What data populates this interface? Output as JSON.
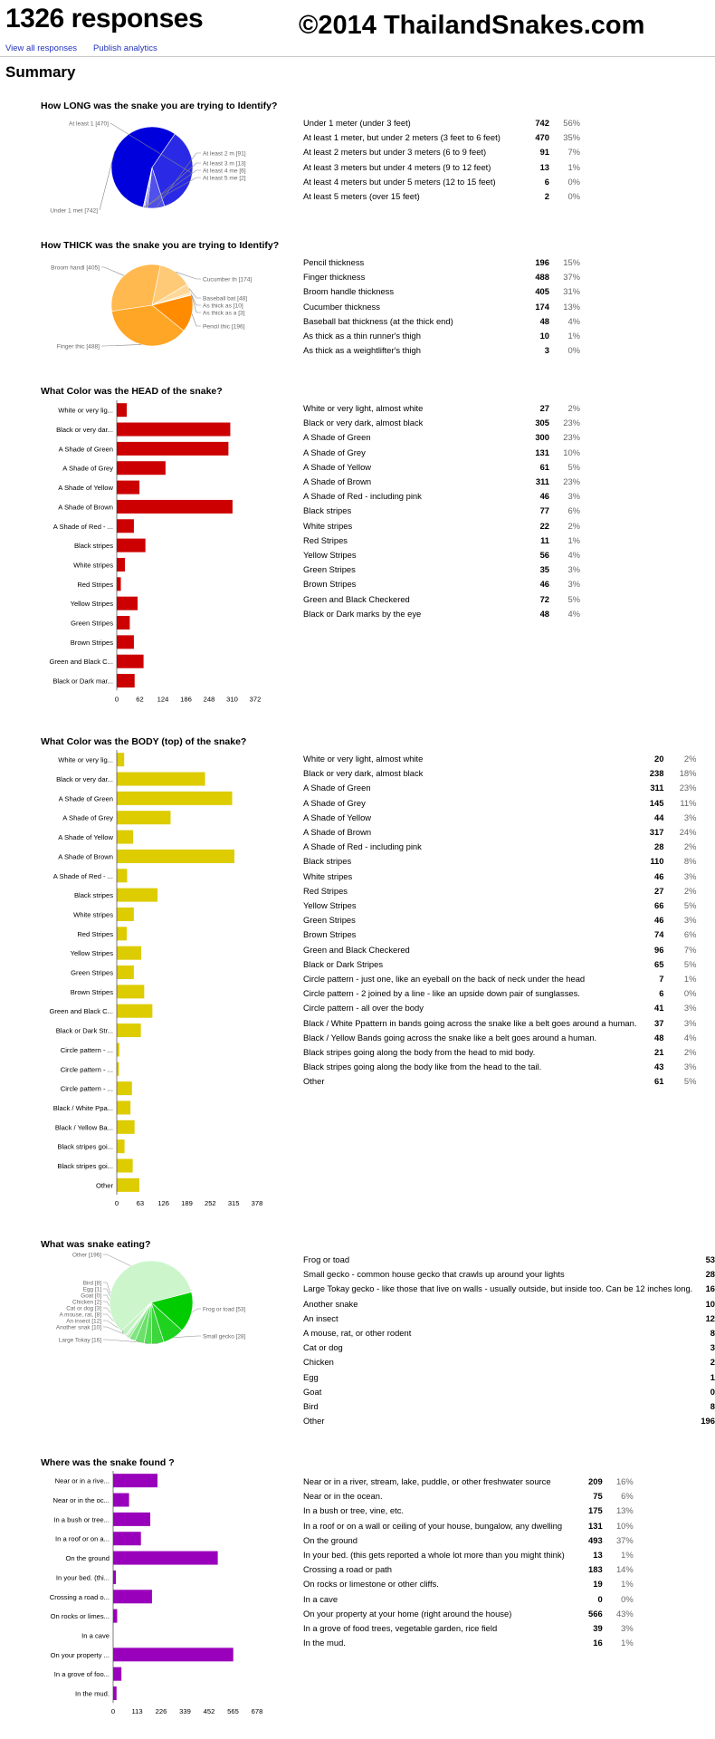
{
  "header": {
    "title": "1326 responses",
    "copyright": "©2014 ThailandSnakes.com",
    "view_all": "View all responses",
    "publish": "Publish analytics"
  },
  "summary_label": "Summary",
  "questions": [
    {
      "title": "How LONG was the snake you are trying to Identify?",
      "rows": [
        {
          "label": "Under 1 meter (under 3 feet)",
          "count": "742",
          "pct": "56%"
        },
        {
          "label": "At least 1 meter, but under 2 meters (3 feet to 6 feet)",
          "count": "470",
          "pct": "35%"
        },
        {
          "label": "At least 2 meters but under 3 meters (6 to 9 feet)",
          "count": "91",
          "pct": "7%"
        },
        {
          "label": "At least 3 meters but under 4 meters (9 to 12 feet)",
          "count": "13",
          "pct": "1%"
        },
        {
          "label": "At least 4 meters but under 5 meters (12 to 15 feet)",
          "count": "6",
          "pct": "0%"
        },
        {
          "label": "At least 5 meters (over 15 feet)",
          "count": "2",
          "pct": "0%"
        }
      ]
    },
    {
      "title": "How THICK was the snake you are trying to Identify?",
      "rows": [
        {
          "label": "Pencil thickness",
          "count": "196",
          "pct": "15%"
        },
        {
          "label": "Finger thickness",
          "count": "488",
          "pct": "37%"
        },
        {
          "label": "Broom handle thickness",
          "count": "405",
          "pct": "31%"
        },
        {
          "label": "Cucumber thickness",
          "count": "174",
          "pct": "13%"
        },
        {
          "label": "Baseball bat thickness (at the thick end)",
          "count": "48",
          "pct": "4%"
        },
        {
          "label": "As thick as a thin runner's thigh",
          "count": "10",
          "pct": "1%"
        },
        {
          "label": "As thick as a weightlifter's thigh",
          "count": "3",
          "pct": "0%"
        }
      ]
    },
    {
      "title": "What Color was the HEAD of the snake?",
      "rows": [
        {
          "label": "White or very light, almost white",
          "count": "27",
          "pct": "2%"
        },
        {
          "label": "Black or very dark, almost black",
          "count": "305",
          "pct": "23%"
        },
        {
          "label": "A Shade of Green",
          "count": "300",
          "pct": "23%"
        },
        {
          "label": "A Shade of Grey",
          "count": "131",
          "pct": "10%"
        },
        {
          "label": "A Shade of Yellow",
          "count": "61",
          "pct": "5%"
        },
        {
          "label": "A Shade of Brown",
          "count": "311",
          "pct": "23%"
        },
        {
          "label": "A Shade of Red - including pink",
          "count": "46",
          "pct": "3%"
        },
        {
          "label": "Black stripes",
          "count": "77",
          "pct": "6%"
        },
        {
          "label": "White stripes",
          "count": "22",
          "pct": "2%"
        },
        {
          "label": "Red Stripes",
          "count": "11",
          "pct": "1%"
        },
        {
          "label": "Yellow Stripes",
          "count": "56",
          "pct": "4%"
        },
        {
          "label": "Green Stripes",
          "count": "35",
          "pct": "3%"
        },
        {
          "label": "Brown Stripes",
          "count": "46",
          "pct": "3%"
        },
        {
          "label": "Green and Black Checkered",
          "count": "72",
          "pct": "5%"
        },
        {
          "label": "Black or Dark marks by the eye",
          "count": "48",
          "pct": "4%"
        }
      ]
    },
    {
      "title": "What Color was the BODY (top) of the snake?",
      "rows": [
        {
          "label": "White or very light, almost white",
          "count": "20",
          "pct": "2%"
        },
        {
          "label": "Black or very dark, almost black",
          "count": "238",
          "pct": "18%"
        },
        {
          "label": "A Shade of Green",
          "count": "311",
          "pct": "23%"
        },
        {
          "label": "A Shade of Grey",
          "count": "145",
          "pct": "11%"
        },
        {
          "label": "A Shade of Yellow",
          "count": "44",
          "pct": "3%"
        },
        {
          "label": "A Shade of Brown",
          "count": "317",
          "pct": "24%"
        },
        {
          "label": "A Shade of Red - including pink",
          "count": "28",
          "pct": "2%"
        },
        {
          "label": "Black stripes",
          "count": "110",
          "pct": "8%"
        },
        {
          "label": "White stripes",
          "count": "46",
          "pct": "3%"
        },
        {
          "label": "Red Stripes",
          "count": "27",
          "pct": "2%"
        },
        {
          "label": "Yellow Stripes",
          "count": "66",
          "pct": "5%"
        },
        {
          "label": "Green Stripes",
          "count": "46",
          "pct": "3%"
        },
        {
          "label": "Brown Stripes",
          "count": "74",
          "pct": "6%"
        },
        {
          "label": "Green and Black Checkered",
          "count": "96",
          "pct": "7%"
        },
        {
          "label": "Black or Dark Stripes",
          "count": "65",
          "pct": "5%"
        },
        {
          "label": "Circle pattern - just one, like an eyeball on the back of neck under the head",
          "count": "7",
          "pct": "1%"
        },
        {
          "label": "Circle pattern - 2 joined by a line - like an upside down pair of sunglasses.",
          "count": "6",
          "pct": "0%"
        },
        {
          "label": "Circle pattern - all over the body",
          "count": "41",
          "pct": "3%"
        },
        {
          "label": "Black / White Ppattern in bands going across the snake like a belt goes around a human.",
          "count": "37",
          "pct": "3%"
        },
        {
          "label": "Black / Yellow Bands going across the snake like a belt goes around a human.",
          "count": "48",
          "pct": "4%"
        },
        {
          "label": "Black stripes going along the body from the head to mid body.",
          "count": "21",
          "pct": "2%"
        },
        {
          "label": "Black stripes going along the body like from the head to the tail.",
          "count": "43",
          "pct": "3%"
        },
        {
          "label": "Other",
          "count": "61",
          "pct": "5%"
        }
      ]
    },
    {
      "title": "What was snake eating?",
      "rows": [
        {
          "label": "Frog or toad",
          "count": "53"
        },
        {
          "label": "Small gecko - common house gecko that crawls up around your lights",
          "count": "28"
        },
        {
          "label": "Large Tokay gecko - like those that live on walls - usually outside, but inside too. Can be 12 inches long.",
          "count": "16"
        },
        {
          "label": "Another snake",
          "count": "10"
        },
        {
          "label": "An insect",
          "count": "12"
        },
        {
          "label": "A mouse, rat, or other rodent",
          "count": "8"
        },
        {
          "label": "Cat or dog",
          "count": "3"
        },
        {
          "label": "Chicken",
          "count": "2"
        },
        {
          "label": "Egg",
          "count": "1"
        },
        {
          "label": "Goat",
          "count": "0"
        },
        {
          "label": "Bird",
          "count": "8"
        },
        {
          "label": "Other",
          "count": "196"
        }
      ]
    },
    {
      "title": "Where was the snake found ?",
      "rows": [
        {
          "label": "Near or in a river, stream, lake, puddle, or other freshwater source",
          "count": "209",
          "pct": "16%"
        },
        {
          "label": "Near or in the ocean.",
          "count": "75",
          "pct": "6%"
        },
        {
          "label": "In a bush or tree, vine, etc.",
          "count": "175",
          "pct": "13%"
        },
        {
          "label": "In a roof or on a wall or ceiling of your house, bungalow, any dwelling",
          "count": "131",
          "pct": "10%"
        },
        {
          "label": "On the ground",
          "count": "493",
          "pct": "37%"
        },
        {
          "label": "In your bed. (this gets reported a whole lot more than you might think)",
          "count": "13",
          "pct": "1%"
        },
        {
          "label": "Crossing a road or path",
          "count": "183",
          "pct": "14%"
        },
        {
          "label": "On rocks or limestone or other cliffs.",
          "count": "19",
          "pct": "1%"
        },
        {
          "label": "In a cave",
          "count": "0",
          "pct": "0%"
        },
        {
          "label": "On your property at your home (right around the house)",
          "count": "566",
          "pct": "43%"
        },
        {
          "label": "In a grove of food trees, vegetable garden, rice field",
          "count": "39",
          "pct": "3%"
        },
        {
          "label": "In the mud.",
          "count": "16",
          "pct": "1%"
        }
      ]
    }
  ],
  "chart_data": [
    {
      "type": "pie",
      "title": "How LONG was the snake you are trying to Identify?",
      "categories": [
        "Under 1 met",
        "At least 1",
        "At least 2 m",
        "At least 3 m",
        "At least 4 me",
        "At least 5 me"
      ],
      "data_labels": [
        "Under 1 met [742]",
        "At least 1  [470]",
        "At least 2 m [91]",
        "At least 3 m [13]",
        "At least 4 me [6]",
        "At least 5 me [2]"
      ],
      "values": [
        742,
        470,
        91,
        13,
        6,
        2
      ],
      "colors": [
        "#0000dd",
        "#2a2ae6",
        "#5050ea",
        "#7a7aee",
        "#9d9df2",
        "#c2c2f7"
      ]
    },
    {
      "type": "pie",
      "title": "How THICK was the snake you are trying to Identify?",
      "categories": [
        "Pencil thic",
        "Finger thic",
        "Broom handl",
        "Cucumber th",
        "Baseball bat",
        "As thick as",
        "As thick as"
      ],
      "data_labels": [
        "Pencil thic [196]",
        "Finger thic [488]",
        "Broom handl [405]",
        "Cucumber th [174]",
        "Baseball bat [48]",
        "As thick as  [10]",
        "As thick as a [3]"
      ],
      "values": [
        196,
        488,
        405,
        174,
        48,
        10,
        3
      ],
      "colors": [
        "#ff8c00",
        "#ffa626",
        "#ffb94f",
        "#ffca78",
        "#ffd898",
        "#ffe3b4",
        "#ffeccb"
      ]
    },
    {
      "type": "bar",
      "orientation": "horizontal",
      "title": "What Color was the HEAD of the snake?",
      "categories": [
        "White or very lig...",
        "Black or very dar...",
        "A Shade of Green",
        "A Shade of Grey",
        "A Shade of Yellow",
        "A Shade of Brown",
        "A Shade of Red - ...",
        "Black stripes",
        "White stripes",
        "Red Stripes",
        "Yellow Stripes",
        "Green Stripes",
        "Brown Stripes",
        "Green and Black C...",
        "Black or Dark mar..."
      ],
      "values": [
        27,
        305,
        300,
        131,
        61,
        311,
        46,
        77,
        22,
        11,
        56,
        35,
        46,
        72,
        48
      ],
      "xticks": [
        "0",
        "62",
        "124",
        "186",
        "248",
        "310",
        "372"
      ],
      "xlim": [
        0,
        372
      ],
      "color": "#cc0000"
    },
    {
      "type": "bar",
      "orientation": "horizontal",
      "title": "What Color was the BODY (top) of the snake?",
      "categories": [
        "White or very lig...",
        "Black or very dar...",
        "A Shade of Green",
        "A Shade of Grey",
        "A Shade of Yellow",
        "A Shade of Brown",
        "A Shade of Red - ...",
        "Black stripes",
        "White stripes",
        "Red Stripes",
        "Yellow Stripes",
        "Green Stripes",
        "Brown Stripes",
        "Green and Black C...",
        "Black or Dark Str...",
        "Circle pattern - ...",
        "Circle pattern - ...",
        "Circle pattern - ...",
        "Black / White Ppa...",
        "Black / Yellow Ba...",
        "Black stripes goi...",
        "Black stripes goi...",
        "Other"
      ],
      "values": [
        20,
        238,
        311,
        145,
        44,
        317,
        28,
        110,
        46,
        27,
        66,
        46,
        74,
        96,
        65,
        7,
        6,
        41,
        37,
        48,
        21,
        43,
        61
      ],
      "xticks": [
        "0",
        "63",
        "126",
        "189",
        "252",
        "315",
        "378"
      ],
      "xlim": [
        0,
        378
      ],
      "color": "#ddcc00"
    },
    {
      "type": "pie",
      "title": "What was snake eating?",
      "categories": [
        "Frog or toad",
        "Small gecko",
        "Large Tokay",
        "Another snak",
        "An insect",
        "A mouse, rat,",
        "Cat or dog",
        "Chicken",
        "Egg",
        "Goat",
        "Bird",
        "Other"
      ],
      "data_labels": [
        "Frog or toad [53]",
        "Small gecko  [28]",
        "Large Tokay  [16]",
        "Another snak  [10]",
        "An insect [12]",
        "A mouse, rat, [8]",
        "Cat or dog [3]",
        "Chicken [2]",
        "Egg [1]",
        "Goat [0]",
        "Bird [8]",
        "Other [196]"
      ],
      "values": [
        53,
        28,
        16,
        10,
        12,
        8,
        3,
        2,
        1,
        0,
        8,
        196
      ],
      "colors": [
        "#00cc00",
        "#1fd21f",
        "#3dd73d",
        "#55dc55",
        "#6be06b",
        "#80e480",
        "#93e893",
        "#a3eba3",
        "#b2eeb2",
        "#bff1bf",
        "#c2f2c2",
        "#ccf5cc"
      ]
    },
    {
      "type": "bar",
      "orientation": "horizontal",
      "title": "Where was the snake found ?",
      "categories": [
        "Near or in a rive...",
        "Near or in the oc...",
        "In a bush or tree...",
        "In a roof or on a...",
        "On the ground",
        "In your bed. (thi...",
        "Crossing a road o...",
        "On rocks or limes...",
        "In a cave",
        "On your property ...",
        "In a grove of foo...",
        "In the mud."
      ],
      "values": [
        209,
        75,
        175,
        131,
        493,
        13,
        183,
        19,
        0,
        566,
        39,
        16
      ],
      "xticks": [
        "0",
        "113",
        "226",
        "339",
        "452",
        "565",
        "678"
      ],
      "xlim": [
        0,
        678
      ],
      "color": "#9900bb"
    }
  ]
}
